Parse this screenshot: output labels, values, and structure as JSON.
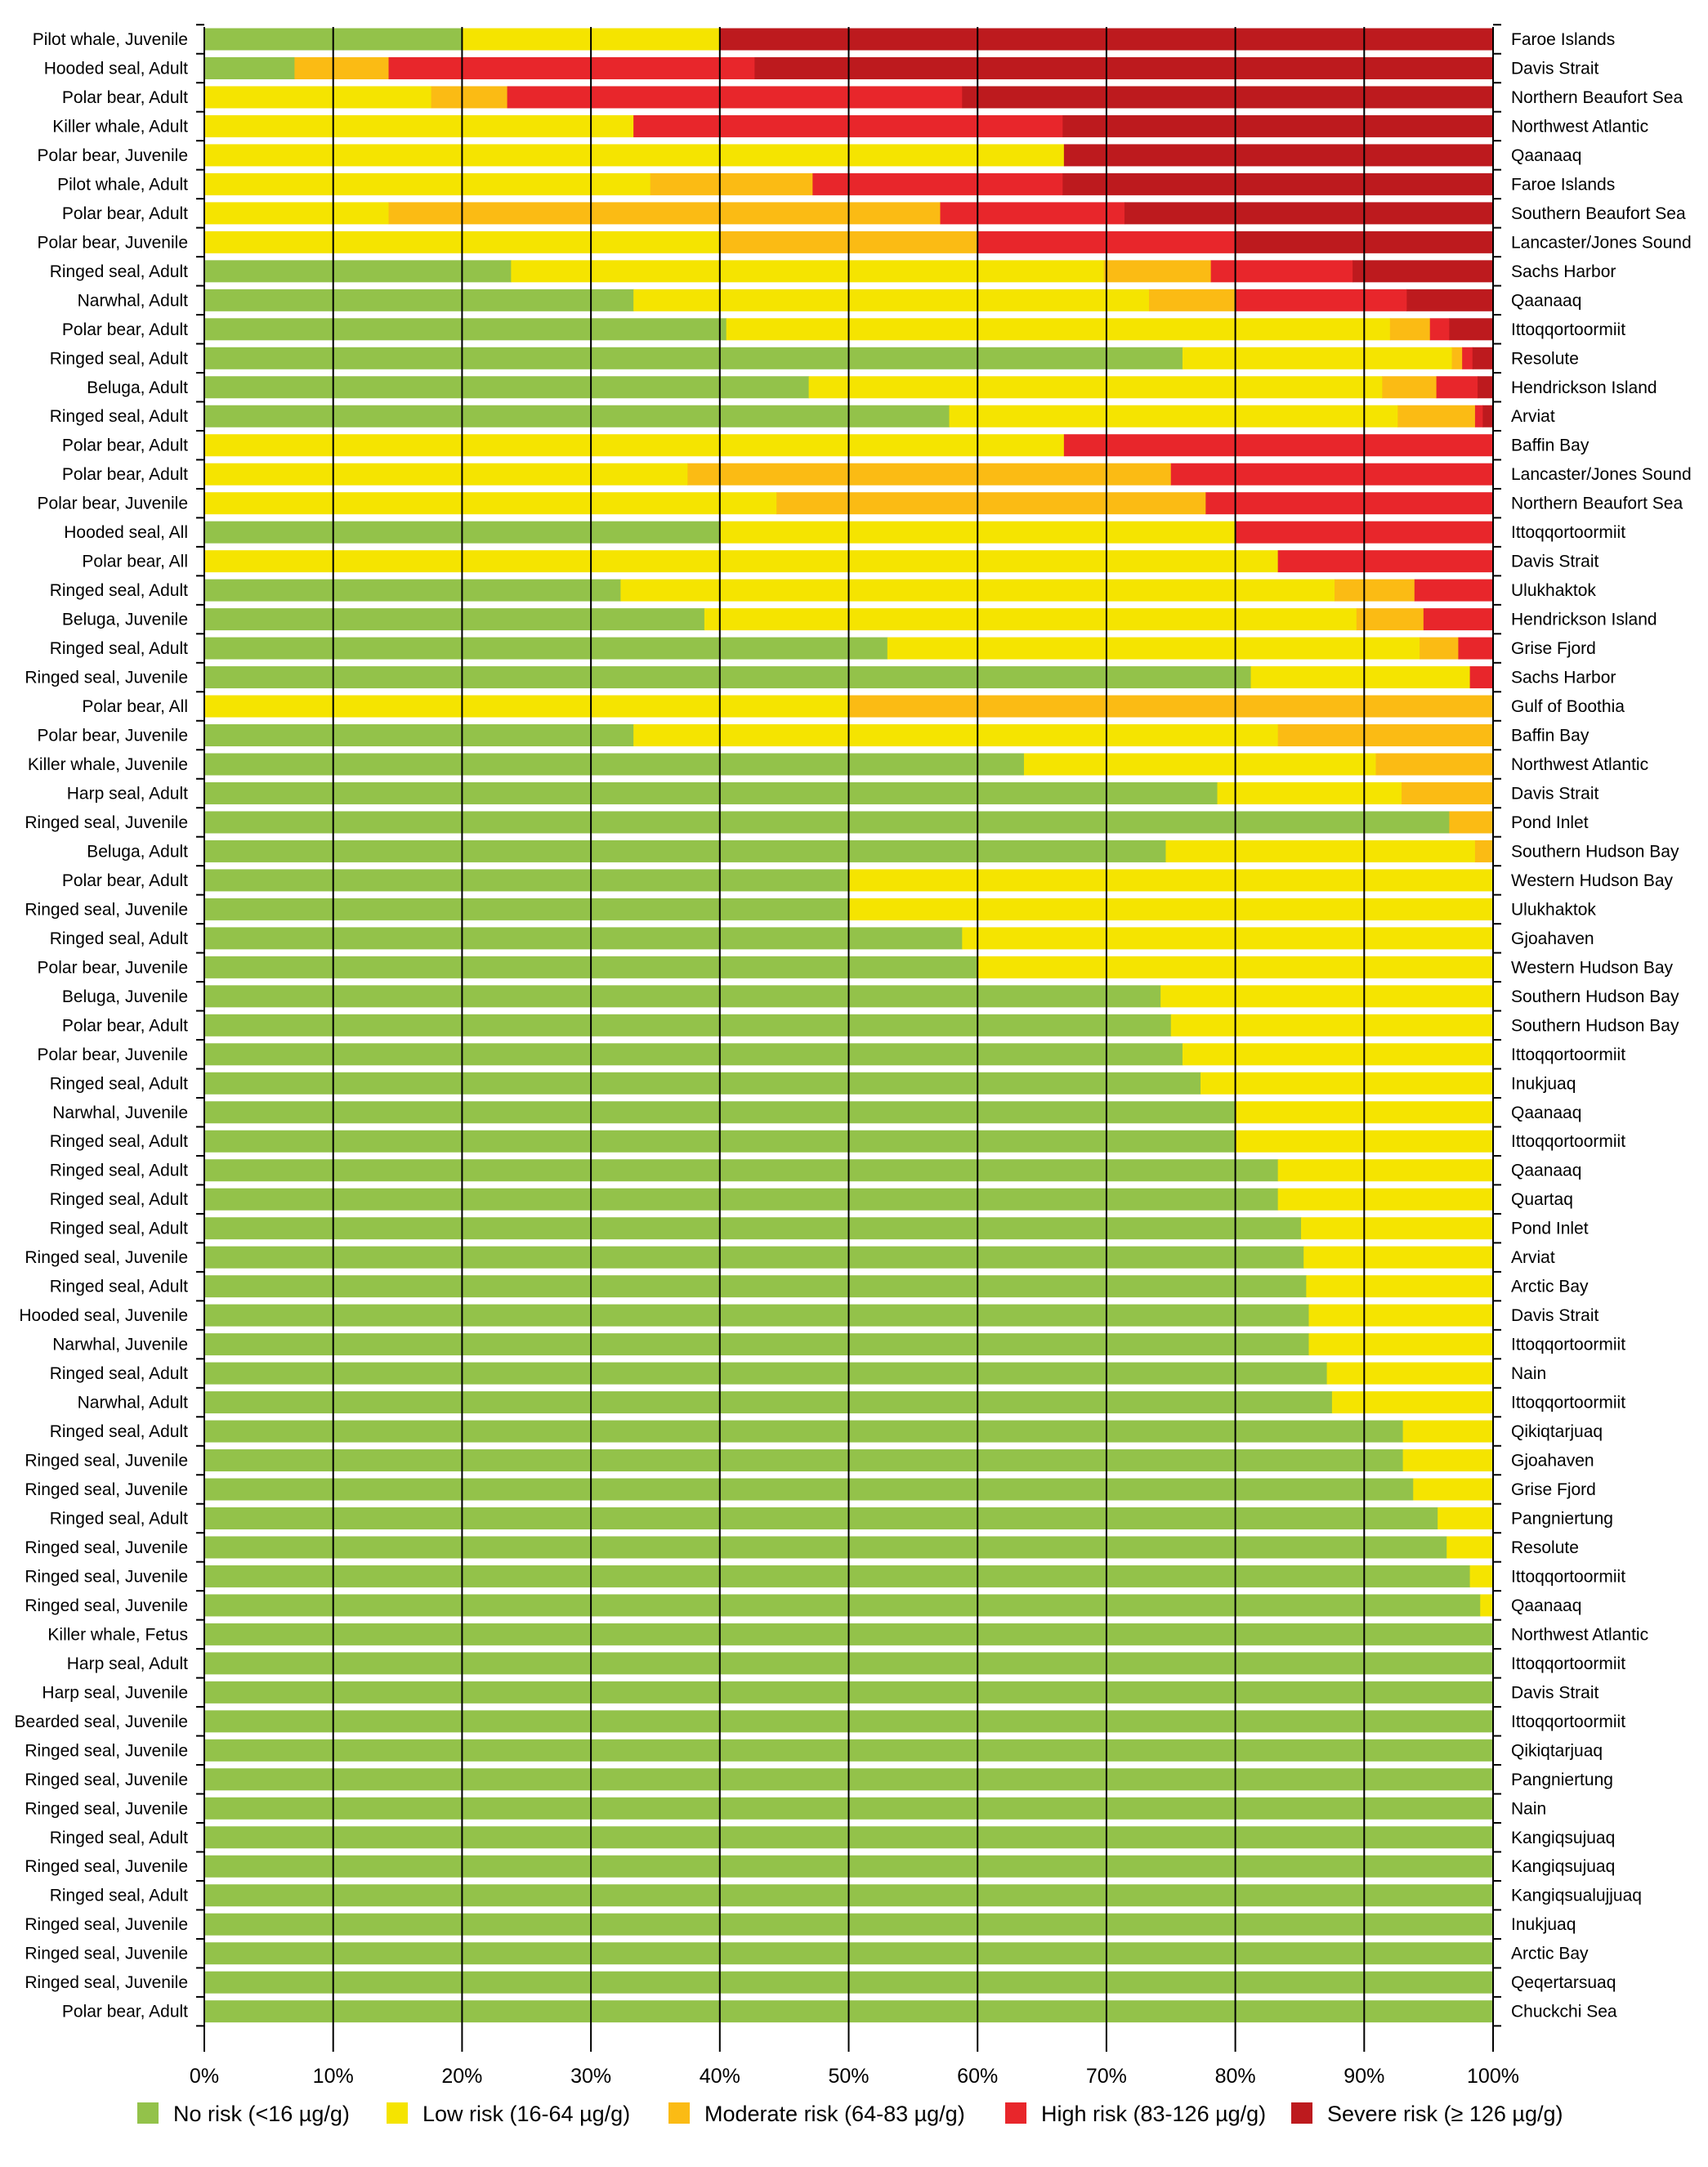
{
  "chart_data": {
    "type": "bar",
    "orientation": "horizontal",
    "stacked": true,
    "normalized": true,
    "title": "",
    "xlabel": "",
    "ylabel": "",
    "xlim": [
      0,
      100
    ],
    "xticks": [
      "0%",
      "10%",
      "20%",
      "30%",
      "40%",
      "50%",
      "60%",
      "70%",
      "80%",
      "90%",
      "100%"
    ],
    "grid": true,
    "legend_position": "bottom",
    "series": [
      {
        "key": "none",
        "name": "No risk (<16 µg/g)",
        "color": "#93c24a"
      },
      {
        "key": "low",
        "name": "Low risk (16-64 µg/g)",
        "color": "#f5e400"
      },
      {
        "key": "moderate",
        "name": "Moderate risk (64-83 µg/g)",
        "color": "#fbbb14"
      },
      {
        "key": "high",
        "name": "High risk (83-126 µg/g)",
        "color": "#e8262b"
      },
      {
        "key": "severe",
        "name": "Severe risk (≥ 126 µg/g)",
        "color": "#bd1a1e"
      }
    ],
    "rows": [
      {
        "label": "Pilot whale, Juvenile",
        "location": "Faroe Islands",
        "values": [
          20,
          20,
          0,
          0,
          60
        ]
      },
      {
        "label": "Hooded seal, Adult",
        "location": "Davis Strait",
        "values": [
          7,
          0,
          7.3,
          28.4,
          57.3
        ]
      },
      {
        "label": "Polar bear, Adult",
        "location": "Northern Beaufort Sea",
        "values": [
          0,
          17.6,
          5.9,
          35.3,
          41.2
        ]
      },
      {
        "label": "Killer whale, Adult",
        "location": "Northwest Atlantic",
        "values": [
          0,
          33.3,
          0,
          33.3,
          33.4
        ]
      },
      {
        "label": "Polar bear, Juvenile",
        "location": "Qaanaaq",
        "values": [
          0,
          66.7,
          0,
          0,
          33.3
        ]
      },
      {
        "label": "Pilot whale, Adult",
        "location": "Faroe Islands",
        "values": [
          0,
          34.6,
          12.6,
          19.4,
          33.4
        ]
      },
      {
        "label": "Polar bear, Adult",
        "location": "Southern Beaufort Sea",
        "values": [
          0,
          14.3,
          42.8,
          14.3,
          28.6
        ]
      },
      {
        "label": "Polar bear, Juvenile",
        "location": "Lancaster/Jones Sound",
        "values": [
          0,
          40,
          20,
          20,
          20
        ]
      },
      {
        "label": "Ringed seal, Adult",
        "location": "Sachs Harbor",
        "values": [
          23.8,
          46,
          8.3,
          11,
          10.9
        ]
      },
      {
        "label": "Narwhal, Adult",
        "location": "Qaanaaq",
        "values": [
          33.3,
          40,
          6.7,
          13.3,
          6.7
        ]
      },
      {
        "label": "Polar bear, Adult",
        "location": "Ittoqqortoormiit",
        "values": [
          40.5,
          51.5,
          3.1,
          1.5,
          3.4
        ]
      },
      {
        "label": "Ringed seal, Adult",
        "location": "Resolute",
        "values": [
          75.9,
          20.9,
          0.8,
          0.8,
          1.6
        ]
      },
      {
        "label": "Beluga, Adult",
        "location": "Hendrickson Island",
        "values": [
          46.9,
          44.5,
          4.2,
          3.2,
          1.2
        ]
      },
      {
        "label": "Ringed seal, Adult",
        "location": "Arviat",
        "values": [
          57.8,
          34.8,
          6,
          0.6,
          0.8
        ]
      },
      {
        "label": "Polar bear, Adult",
        "location": "Baffin Bay",
        "values": [
          0,
          66.7,
          0,
          33.3,
          0
        ]
      },
      {
        "label": "Polar bear, Adult",
        "location": "Lancaster/Jones Sound",
        "values": [
          0,
          37.5,
          37.5,
          25,
          0
        ]
      },
      {
        "label": "Polar bear, Juvenile",
        "location": "Northern Beaufort Sea",
        "values": [
          0,
          44.4,
          33.3,
          22.3,
          0
        ]
      },
      {
        "label": "Hooded seal, All",
        "location": "Ittoqqortoormiit",
        "values": [
          40,
          40,
          0,
          20,
          0
        ]
      },
      {
        "label": "Polar bear, All",
        "location": "Davis Strait",
        "values": [
          0,
          83.3,
          0,
          16.7,
          0
        ]
      },
      {
        "label": "Ringed seal, Adult",
        "location": "Ulukhaktok",
        "values": [
          32.3,
          55.4,
          6.2,
          6.1,
          0
        ]
      },
      {
        "label": "Beluga, Juvenile",
        "location": "Hendrickson Island",
        "values": [
          38.8,
          50.6,
          5.2,
          5.4,
          0
        ]
      },
      {
        "label": "Ringed seal, Adult",
        "location": "Grise Fjord",
        "values": [
          53,
          41.3,
          3,
          2.7,
          0
        ]
      },
      {
        "label": "Ringed seal, Juvenile",
        "location": "Sachs Harbor",
        "values": [
          81.2,
          17,
          0,
          1.8,
          0
        ]
      },
      {
        "label": "Polar bear, All",
        "location": "Gulf of Boothia",
        "values": [
          0,
          50,
          50,
          0,
          0
        ]
      },
      {
        "label": "Polar bear, Juvenile",
        "location": "Baffin Bay",
        "values": [
          33.3,
          50,
          16.7,
          0,
          0
        ]
      },
      {
        "label": "Killer whale, Juvenile",
        "location": "Northwest Atlantic",
        "values": [
          63.6,
          27.3,
          9.1,
          0,
          0
        ]
      },
      {
        "label": "Harp seal, Adult",
        "location": "Davis Strait",
        "values": [
          78.6,
          14.3,
          7.1,
          0,
          0
        ]
      },
      {
        "label": "Ringed seal, Juvenile",
        "location": "Pond Inlet",
        "values": [
          96.6,
          0,
          3.4,
          0,
          0
        ]
      },
      {
        "label": "Beluga, Adult",
        "location": "Southern Hudson Bay",
        "values": [
          74.6,
          24,
          1.4,
          0,
          0
        ]
      },
      {
        "label": "Polar bear, Adult",
        "location": "Western Hudson Bay",
        "values": [
          50,
          50,
          0,
          0,
          0
        ]
      },
      {
        "label": "Ringed seal, Juvenile",
        "location": "Ulukhaktok",
        "values": [
          50,
          50,
          0,
          0,
          0
        ]
      },
      {
        "label": "Ringed seal, Adult",
        "location": "Gjoahaven",
        "values": [
          58.8,
          41.2,
          0,
          0,
          0
        ]
      },
      {
        "label": "Polar bear, Juvenile",
        "location": "Western Hudson Bay",
        "values": [
          60,
          40,
          0,
          0,
          0
        ]
      },
      {
        "label": "Beluga, Juvenile",
        "location": "Southern Hudson Bay",
        "values": [
          74.2,
          25.8,
          0,
          0,
          0
        ]
      },
      {
        "label": "Polar bear, Adult",
        "location": "Southern Hudson Bay",
        "values": [
          75,
          25,
          0,
          0,
          0
        ]
      },
      {
        "label": "Polar bear, Juvenile",
        "location": "Ittoqqortoormiit",
        "values": [
          75.9,
          24.1,
          0,
          0,
          0
        ]
      },
      {
        "label": "Ringed seal, Adult",
        "location": "Inukjuaq",
        "values": [
          77.3,
          22.7,
          0,
          0,
          0
        ]
      },
      {
        "label": "Narwhal, Juvenile",
        "location": "Qaanaaq",
        "values": [
          80,
          20,
          0,
          0,
          0
        ]
      },
      {
        "label": "Ringed seal, Adult",
        "location": "Ittoqqortoormiit",
        "values": [
          80,
          20,
          0,
          0,
          0
        ]
      },
      {
        "label": "Ringed seal, Adult",
        "location": "Qaanaaq",
        "values": [
          83.3,
          16.7,
          0,
          0,
          0
        ]
      },
      {
        "label": "Ringed seal, Adult",
        "location": "Quartaq",
        "values": [
          83.3,
          16.7,
          0,
          0,
          0
        ]
      },
      {
        "label": "Ringed seal, Adult",
        "location": "Pond Inlet",
        "values": [
          85.1,
          14.9,
          0,
          0,
          0
        ]
      },
      {
        "label": "Ringed seal, Juvenile",
        "location": "Arviat",
        "values": [
          85.3,
          14.7,
          0,
          0,
          0
        ]
      },
      {
        "label": "Ringed seal, Adult",
        "location": "Arctic Bay",
        "values": [
          85.5,
          14.5,
          0,
          0,
          0
        ]
      },
      {
        "label": "Hooded seal, Juvenile",
        "location": "Davis Strait",
        "values": [
          85.7,
          14.3,
          0,
          0,
          0
        ]
      },
      {
        "label": "Narwhal, Juvenile",
        "location": "Ittoqqortoormiit",
        "values": [
          85.7,
          14.3,
          0,
          0,
          0
        ]
      },
      {
        "label": "Ringed seal, Adult",
        "location": "Nain",
        "values": [
          87.1,
          12.9,
          0,
          0,
          0
        ]
      },
      {
        "label": "Narwhal, Adult",
        "location": "Ittoqqortoormiit",
        "values": [
          87.5,
          12.5,
          0,
          0,
          0
        ]
      },
      {
        "label": "Ringed seal, Adult",
        "location": "Qikiqtarjuaq",
        "values": [
          93,
          7,
          0,
          0,
          0
        ]
      },
      {
        "label": "Ringed seal, Juvenile",
        "location": "Gjoahaven",
        "values": [
          93,
          7,
          0,
          0,
          0
        ]
      },
      {
        "label": "Ringed seal, Juvenile",
        "location": "Grise Fjord",
        "values": [
          93.8,
          6.2,
          0,
          0,
          0
        ]
      },
      {
        "label": "Ringed seal, Adult",
        "location": "Pangniertung",
        "values": [
          95.7,
          4.3,
          0,
          0,
          0
        ]
      },
      {
        "label": "Ringed seal, Juvenile",
        "location": "Resolute",
        "values": [
          96.4,
          3.6,
          0,
          0,
          0
        ]
      },
      {
        "label": "Ringed seal, Juvenile",
        "location": "Ittoqqortoormiit",
        "values": [
          98.2,
          1.8,
          0,
          0,
          0
        ]
      },
      {
        "label": "Ringed seal, Juvenile",
        "location": "Qaanaaq",
        "values": [
          99,
          1,
          0,
          0,
          0
        ]
      },
      {
        "label": "Killer whale, Fetus",
        "location": "Northwest Atlantic",
        "values": [
          100,
          0,
          0,
          0,
          0
        ]
      },
      {
        "label": "Harp seal, Adult",
        "location": "Ittoqqortoormiit",
        "values": [
          100,
          0,
          0,
          0,
          0
        ]
      },
      {
        "label": "Harp seal, Juvenile",
        "location": "Davis Strait",
        "values": [
          100,
          0,
          0,
          0,
          0
        ]
      },
      {
        "label": "Bearded seal, Juvenile",
        "location": "Ittoqqortoormiit",
        "values": [
          100,
          0,
          0,
          0,
          0
        ]
      },
      {
        "label": "Ringed seal, Juvenile",
        "location": "Qikiqtarjuaq",
        "values": [
          100,
          0,
          0,
          0,
          0
        ]
      },
      {
        "label": "Ringed seal, Juvenile",
        "location": "Pangniertung",
        "values": [
          100,
          0,
          0,
          0,
          0
        ]
      },
      {
        "label": "Ringed seal, Juvenile",
        "location": "Nain",
        "values": [
          100,
          0,
          0,
          0,
          0
        ]
      },
      {
        "label": "Ringed seal, Adult",
        "location": "Kangiqsujuaq",
        "values": [
          100,
          0,
          0,
          0,
          0
        ]
      },
      {
        "label": "Ringed seal, Juvenile",
        "location": "Kangiqsujuaq",
        "values": [
          100,
          0,
          0,
          0,
          0
        ]
      },
      {
        "label": "Ringed seal, Adult",
        "location": "Kangiqsualujjuaq",
        "values": [
          100,
          0,
          0,
          0,
          0
        ]
      },
      {
        "label": "Ringed seal, Juvenile",
        "location": "Inukjuaq",
        "values": [
          100,
          0,
          0,
          0,
          0
        ]
      },
      {
        "label": "Ringed seal, Juvenile",
        "location": "Arctic Bay",
        "values": [
          100,
          0,
          0,
          0,
          0
        ]
      },
      {
        "label": "Ringed seal, Juvenile",
        "location": "Qeqertarsuaq",
        "values": [
          100,
          0,
          0,
          0,
          0
        ]
      },
      {
        "label": "Polar bear, Adult",
        "location": "Chuckchi Sea",
        "values": [
          100,
          0,
          0,
          0,
          0
        ]
      }
    ]
  }
}
